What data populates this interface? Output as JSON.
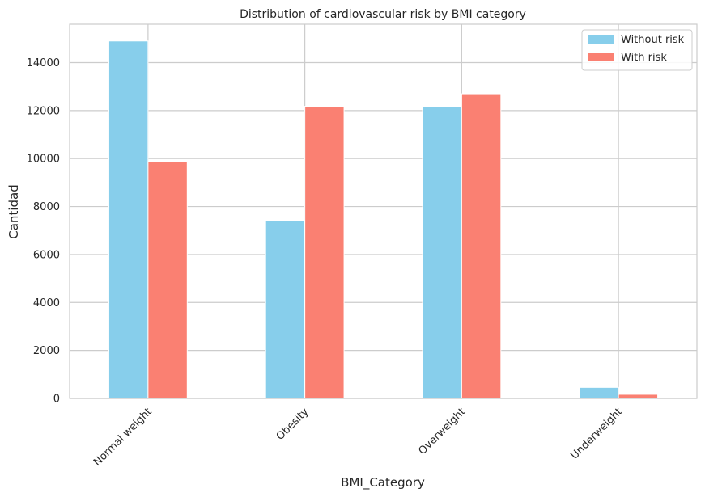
{
  "chart_data": {
    "type": "bar",
    "title": "Distribution of cardiovascular risk by BMI category",
    "xlabel": "BMI_Category",
    "ylabel": "Cantidad",
    "categories": [
      "Normal weight",
      "Obesity",
      "Overweight",
      "Underweight"
    ],
    "series": [
      {
        "name": "Without risk",
        "color": "#87CEEB",
        "values": [
          14900,
          7420,
          12180,
          460
        ]
      },
      {
        "name": "With risk",
        "color": "#FA8072",
        "values": [
          9870,
          12180,
          12700,
          170
        ]
      }
    ],
    "ylim": [
      0,
      15600
    ],
    "yticks": [
      0,
      2000,
      4000,
      6000,
      8000,
      10000,
      12000,
      14000
    ],
    "grid": true,
    "legend_position": "top-right"
  }
}
